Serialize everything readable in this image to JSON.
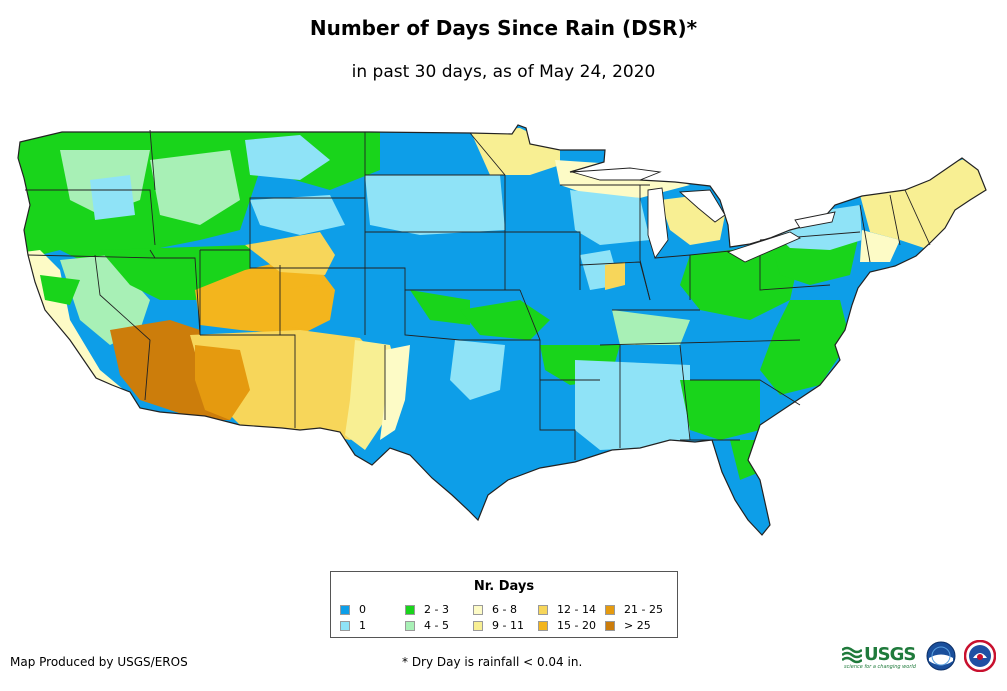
{
  "title": "Number of Days Since Rain (DSR)*",
  "subtitle": "in past 30 days, as of May 24, 2020",
  "map": {
    "region": "Contiguous United States",
    "colors": {
      "d0": "#0d9ee8",
      "d1": "#8fe3f7",
      "d2_3": "#19d41b",
      "d4_5": "#a8f0b6",
      "d6_8": "#fdfbc6",
      "d9_11": "#f8ef93",
      "d12_14": "#f7d65a",
      "d15_20": "#f3b51d",
      "d21_25": "#e59a0f",
      "d25p": "#cc7d0b",
      "border": "#222222",
      "water": "#ffffff"
    }
  },
  "legend": {
    "title": "Nr. Days",
    "items": [
      {
        "label": "0",
        "color": "#0d9ee8"
      },
      {
        "label": "1",
        "color": "#8fe3f7"
      },
      {
        "label": "2 - 3",
        "color": "#19d41b"
      },
      {
        "label": "4 - 5",
        "color": "#a8f0b6"
      },
      {
        "label": "6 - 8",
        "color": "#fdfbc6"
      },
      {
        "label": "9 - 11",
        "color": "#f8ef93"
      },
      {
        "label": "12 - 14",
        "color": "#f7d65a"
      },
      {
        "label": "15 - 20",
        "color": "#f3b51d"
      },
      {
        "label": "21 - 25",
        "color": "#e59a0f"
      },
      {
        "label": "> 25",
        "color": "#cc7d0b"
      }
    ]
  },
  "credit": "Map Produced by USGS/EROS",
  "footnote": "* Dry Day is rainfall < 0.04 in.",
  "logos": {
    "usgs": "USGS",
    "usgs_tagline": "science for a changing world",
    "noaa": "noaa-logo",
    "nws": "nws-logo"
  }
}
